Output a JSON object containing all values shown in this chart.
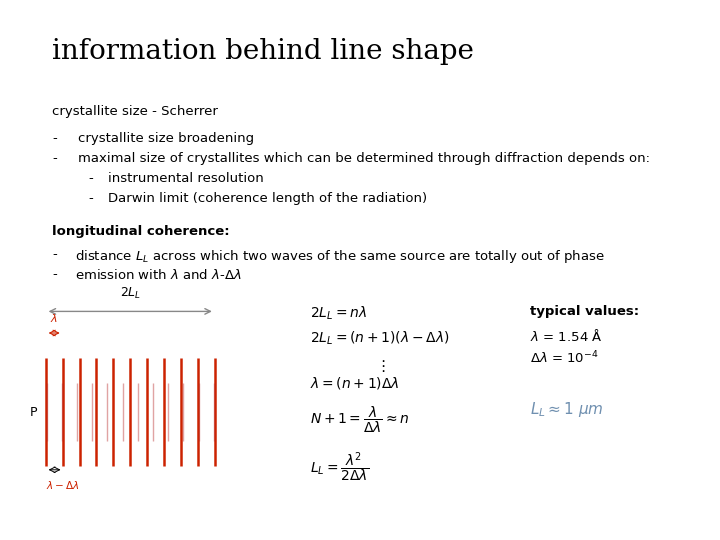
{
  "title": "information behind line shape",
  "title_fontsize": 20,
  "bg_color": "#ffffff",
  "text_color": "#000000",
  "red_color": "#cc2200",
  "blue_color": "#7090b0",
  "section1_label": "crystallite size - Scherrer",
  "bullet1": "crystallite size broadening",
  "bullet2": "maximal size of crystallites which can be determined through diffraction depends on:",
  "sub_bullet1": "instrumental resolution",
  "sub_bullet2": "Darwin limit (coherence length of the radiation)",
  "section2_label": "longitudinal coherence:",
  "typical_label": "typical values:",
  "body_fontsize": 9.5,
  "eq_fontsize": 10
}
